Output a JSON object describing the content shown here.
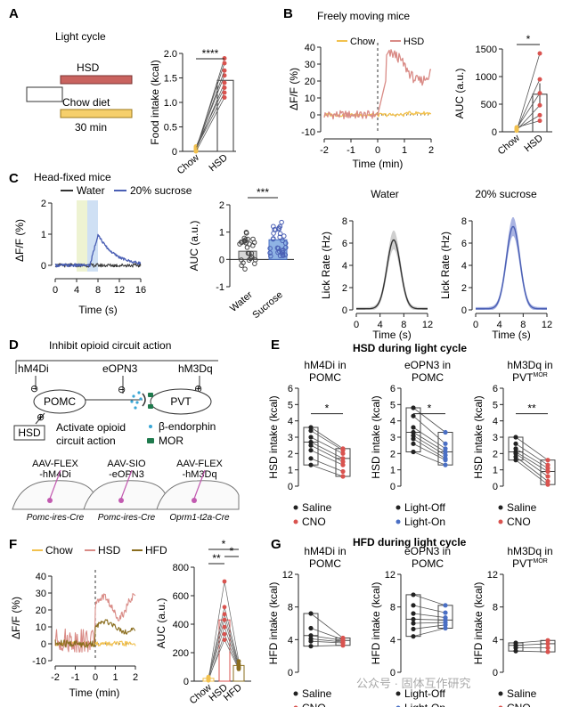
{
  "panels": {
    "A": {
      "letter": "A",
      "subtitle": "Light cycle",
      "bar_hsd": "HSD",
      "bar_chow": "Chow diet",
      "duration": "30 min",
      "ylabel": "Food intake (kcal)",
      "sig": "****",
      "yticks": [
        "0",
        "0.5",
        "1.0",
        "1.5",
        "2.0"
      ],
      "xcats": [
        "Chow",
        "HSD"
      ]
    },
    "B": {
      "letter": "B",
      "subtitle": "Freely moving mice",
      "legend": [
        "Chow",
        "HSD"
      ],
      "ylabel": "ΔF/F (%)",
      "xlabel": "Time (min)",
      "yticks": [
        "-10",
        "0",
        "10",
        "20",
        "30",
        "40"
      ],
      "xticks": [
        "-2",
        "-1",
        "0",
        "1",
        "2"
      ],
      "auc_ylabel": "AUC (a.u.)",
      "auc_yticks": [
        "0",
        "500",
        "1000",
        "1500"
      ],
      "auc_sig": "*",
      "auc_xcats": [
        "Chow",
        "HSD"
      ]
    },
    "C": {
      "letter": "C",
      "subtitle": "Head-fixed mice",
      "legend": [
        "Water",
        "20% sucrose"
      ],
      "ylabel": "ΔF/F (%)",
      "xlabel": "Time (s)",
      "yticks": [
        "0",
        "1",
        "2"
      ],
      "xticks": [
        "0",
        "4",
        "8",
        "12",
        "16"
      ],
      "auc_ylabel": "AUC (a.u.)",
      "auc_sig": "***",
      "auc_yticks": [
        "-1",
        "0",
        "1",
        "2"
      ],
      "auc_xcats": [
        "Water",
        "Sucrose"
      ],
      "lick_titles": [
        "Water",
        "20% sucrose"
      ],
      "lick_ylabel": "Lick Rate (Hz)",
      "lick_xlabel": "Time (s)",
      "lick_yticks": [
        "0",
        "2",
        "4",
        "6",
        "8"
      ],
      "lick_xticks": [
        "0",
        "4",
        "8",
        "12"
      ]
    },
    "D": {
      "letter": "D",
      "subtitle": "Inhibit opioid circuit action",
      "receptors": [
        "hM4Di",
        "eOPN3",
        "hM3Dq"
      ],
      "pomc": "POMC",
      "pvt": "PVT",
      "hsd": "HSD",
      "activate": "Activate opioid\ncircuit action",
      "legend_endorphin": "β-endorphin",
      "legend_mor": "MOR",
      "viruses": [
        "AAV-FLEX\n-hM4Di",
        "AAV-SIO\n-eOPN3",
        "AAV-FLEX\n-hM3Dq"
      ],
      "lines": [
        "Pomc-ires-Cre",
        "Pomc-ires-Cre",
        "Oprm1-t2a-Cre"
      ]
    },
    "E": {
      "letter": "E",
      "title": "HSD during light cycle",
      "ylabel": "HSD intake (kcal)",
      "yticks": [
        "0",
        "1",
        "2",
        "3",
        "4",
        "5",
        "6"
      ],
      "subs": [
        {
          "title": "hM4Di in\nPOMC",
          "sig": "*",
          "legend": [
            "Saline",
            "CNO"
          ]
        },
        {
          "title": "eOPN3 in\nPOMC",
          "sig": "*",
          "legend": [
            "Light-Off",
            "Light-On"
          ]
        },
        {
          "title": "hM3Dq in\nPVT",
          "sup": "MOR",
          "sig": "**",
          "legend": [
            "Saline",
            "CNO"
          ]
        }
      ]
    },
    "F": {
      "letter": "F",
      "legend": [
        "Chow",
        "HSD",
        "HFD"
      ],
      "ylabel": "ΔF/F (%)",
      "xlabel": "Time (min)",
      "yticks": [
        "-10",
        "0",
        "10",
        "20",
        "30",
        "40"
      ],
      "xticks": [
        "-2",
        "-1",
        "0",
        "1",
        "2"
      ],
      "auc_ylabel": "AUC (a.u.)",
      "auc_yticks": [
        "0",
        "200",
        "400",
        "600",
        "800"
      ],
      "auc_sigs": [
        "**",
        "*",
        "*"
      ],
      "auc_xcats": [
        "Chow",
        "HSD",
        "HFD"
      ]
    },
    "G": {
      "letter": "G",
      "title": "HFD during light cycle",
      "ylabel": "HFD intake (kcal)",
      "yticks": [
        "0",
        "4",
        "8",
        "12"
      ],
      "subs": [
        {
          "title": "hM4Di in\nPOMC",
          "legend": [
            "Saline",
            "CNO"
          ]
        },
        {
          "title": "eOPN3 in\nPOMC",
          "legend": [
            "Light-Off",
            "Light-On"
          ]
        },
        {
          "title": "hM3Dq in\nPVT",
          "sup": "MOR",
          "legend": [
            "Saline",
            "CNO"
          ]
        }
      ]
    }
  },
  "watermark": "公众号 · 固体互作研究",
  "colors": {
    "chow": "#f2c14e",
    "hsd": "#d9534f",
    "hsd_trace": "#d98b86",
    "hfd": "#8a6d1e",
    "water": "#333333",
    "sucrose": "#4a5fb4",
    "light_on": "#4a6fc4",
    "cno": "#d9534f",
    "endorphin": "#3aa7d6",
    "mor": "#1f7a4d"
  }
}
